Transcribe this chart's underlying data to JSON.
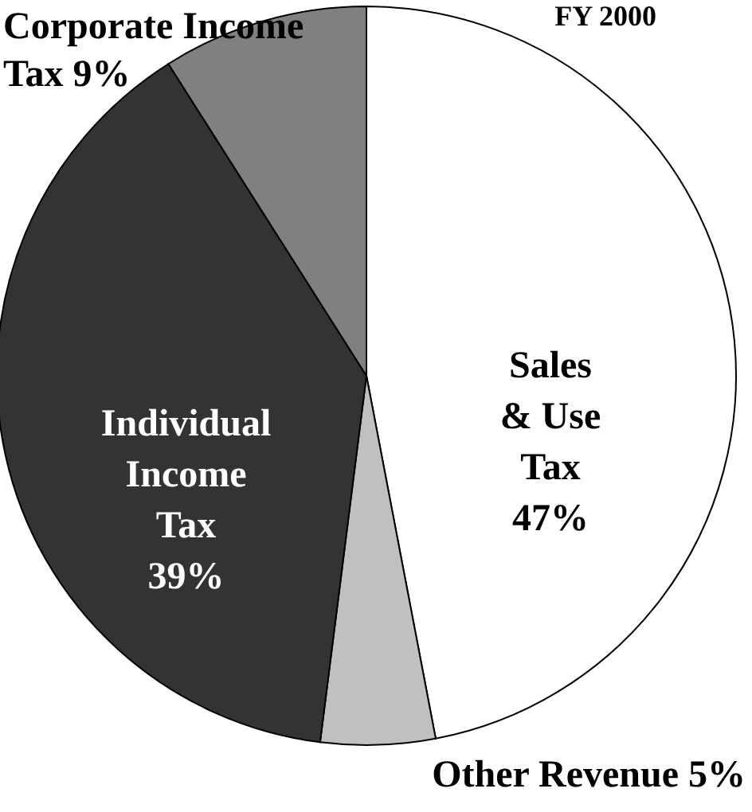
{
  "chart_data": {
    "type": "pie",
    "title": "FY 2000",
    "categories": [
      "Sales & Use Tax",
      "Other Revenue",
      "Individual Income Tax",
      "Corporate Income Tax"
    ],
    "values": [
      47,
      5,
      39,
      9
    ],
    "value_labels": [
      "47%",
      "5%",
      "39%",
      "9%"
    ],
    "colors": [
      "#ffffff",
      "#c0c0c0",
      "#333333",
      "#808080"
    ]
  }
}
